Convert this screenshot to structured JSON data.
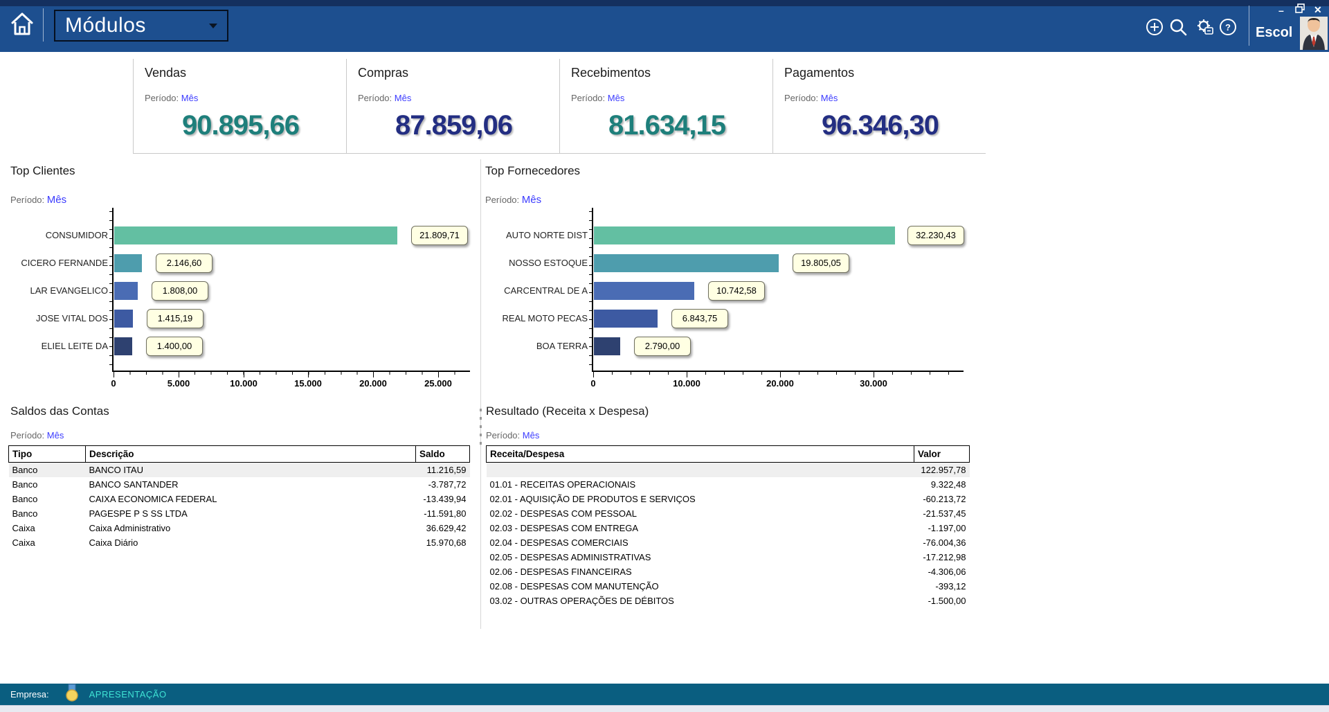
{
  "header": {
    "module_selector": "Módulos",
    "user_name": "Escol",
    "window_controls": {
      "minimize": "–",
      "close": "✕"
    }
  },
  "kpis": {
    "period_label": "Período:",
    "period_value": "Mês",
    "cards": [
      {
        "title": "Vendas",
        "value": "90.895,66",
        "color": "#1E7F7B"
      },
      {
        "title": "Compras",
        "value": "87.859,06",
        "color": "#232E82"
      },
      {
        "title": "Recebimentos",
        "value": "81.634,15",
        "color": "#1E7F7B"
      },
      {
        "title": "Pagamentos",
        "value": "96.346,30",
        "color": "#232E82"
      }
    ]
  },
  "charts": {
    "period_label": "Período:",
    "period_value": "Mês",
    "bar_colors": [
      "#63BFA2",
      "#4E9DAD",
      "#4A6CB4",
      "#3D5AA2",
      "#2E4170"
    ],
    "clientes": {
      "title": "Top Clientes",
      "type": "bar",
      "bars": [
        {
          "label": "CONSUMIDOR",
          "value": 21809.71,
          "value_label": "21.809,71"
        },
        {
          "label": "CICERO FERNANDE",
          "value": 2146.6,
          "value_label": "2.146,60"
        },
        {
          "label": "LAR EVANGELICO",
          "value": 1808.0,
          "value_label": "1.808,00"
        },
        {
          "label": "JOSE VITAL DOS",
          "value": 1415.19,
          "value_label": "1.415,19"
        },
        {
          "label": "ELIEL LEITE DA",
          "value": 1400.0,
          "value_label": "1.400,00"
        }
      ],
      "ticks": [
        "0",
        "5.000",
        "10.000",
        "15.000",
        "20.000",
        "25.000"
      ],
      "xlim": [
        0,
        27000
      ]
    },
    "fornecedores": {
      "title": "Top Fornecedores",
      "type": "bar",
      "bars": [
        {
          "label": "AUTO NORTE DIST",
          "value": 32230.43,
          "value_label": "32.230,43"
        },
        {
          "label": "NOSSO ESTOQUE",
          "value": 19805.05,
          "value_label": "19.805,05"
        },
        {
          "label": "CARCENTRAL DE A",
          "value": 10742.58,
          "value_label": "10.742,58"
        },
        {
          "label": "REAL MOTO PECAS",
          "value": 6843.75,
          "value_label": "6.843,75"
        },
        {
          "label": "BOA TERRA",
          "value": 2790.0,
          "value_label": "2.790,00"
        }
      ],
      "ticks": [
        "0",
        "10.000",
        "20.000",
        "30.000"
      ],
      "xlim": [
        0,
        39500
      ]
    }
  },
  "tables": {
    "period_label": "Período:",
    "period_value": "Mês",
    "saldos": {
      "title": "Saldos das Contas",
      "columns": [
        "Tipo",
        "Descrição",
        "Saldo"
      ],
      "rows": [
        [
          "Banco",
          "BANCO ITAU",
          "11.216,59"
        ],
        [
          "Banco",
          "BANCO SANTANDER",
          "-3.787,72"
        ],
        [
          "Banco",
          "CAIXA ECONOMICA FEDERAL",
          "-13.439,94"
        ],
        [
          "Banco",
          "PAGESPE P S SS LTDA",
          "-11.591,80"
        ],
        [
          "Caixa",
          "Caixa Administrativo",
          "36.629,42"
        ],
        [
          "Caixa",
          "Caixa Diário",
          "15.970,68"
        ]
      ]
    },
    "resultado": {
      "title": "Resultado (Receita x Despesa)",
      "columns": [
        "Receita/Despesa",
        "Valor"
      ],
      "rows": [
        [
          "",
          "122.957,78"
        ],
        [
          "01.01 - RECEITAS OPERACIONAIS",
          "9.322,48"
        ],
        [
          "02.01 - AQUISIÇÃO DE PRODUTOS E SERVIÇOS",
          "-60.213,72"
        ],
        [
          "02.02 - DESPESAS COM PESSOAL",
          "-21.537,45"
        ],
        [
          "02.03 - DESPESAS COM ENTREGA",
          "-1.197,00"
        ],
        [
          "02.04 - DESPESAS COMERCIAIS",
          "-76.004,36"
        ],
        [
          "02.05 - DESPESAS ADMINISTRATIVAS",
          "-17.212,98"
        ],
        [
          "02.06 - DESPESAS FINANCEIRAS",
          "-4.306,06"
        ],
        [
          "02.08 - DESPESAS COM MANUTENÇÃO",
          "-393,12"
        ],
        [
          "03.02 - OUTRAS OPERAÇÕES DE DÉBITOS",
          "-1.500,00"
        ]
      ]
    }
  },
  "footer": {
    "company_label": "Empresa:",
    "company_name": "APRESENTAÇÃO"
  }
}
